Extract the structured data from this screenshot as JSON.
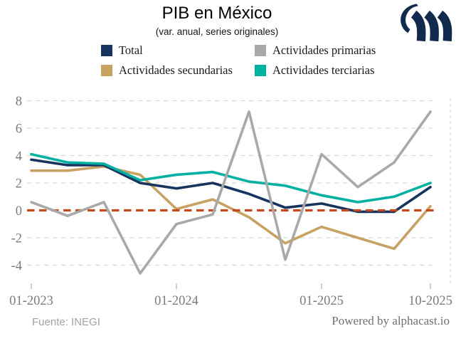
{
  "header": {
    "title": "PIB en México",
    "subtitle": "(var. anual, series originales)"
  },
  "chart_data": {
    "type": "line",
    "x": [
      "01-2023",
      "04-2023",
      "07-2023",
      "10-2023",
      "01-2024",
      "04-2024",
      "07-2024",
      "10-2024",
      "01-2025",
      "04-2025",
      "07-2025",
      "10-2025"
    ],
    "series": [
      {
        "name": "Total",
        "color": "#16345e",
        "values": [
          3.7,
          3.3,
          3.3,
          2.0,
          1.6,
          2.0,
          1.2,
          0.2,
          0.5,
          -0.1,
          -0.1,
          1.7
        ]
      },
      {
        "name": "Actividades primarias",
        "color": "#a9a9a9",
        "values": [
          0.6,
          -0.4,
          0.6,
          -4.6,
          -1.0,
          -0.3,
          7.2,
          -3.6,
          4.1,
          1.7,
          3.5,
          7.2
        ]
      },
      {
        "name": "Actividades secundarias",
        "color": "#c7a263",
        "values": [
          2.9,
          2.9,
          3.2,
          2.6,
          0.1,
          0.8,
          -0.5,
          -2.4,
          -1.2,
          -2.0,
          -2.8,
          0.3
        ]
      },
      {
        "name": "Actividades terciarias",
        "color": "#00b0a0",
        "values": [
          4.1,
          3.5,
          3.4,
          2.2,
          2.6,
          2.8,
          2.1,
          1.8,
          1.1,
          0.6,
          1.0,
          2.0
        ]
      }
    ],
    "yticks": [
      8,
      6,
      4,
      2,
      0,
      -2,
      -4
    ],
    "ylim": [
      -5.2,
      8.6
    ],
    "xtick_indices": [
      0,
      4,
      8,
      11
    ],
    "xtick_labels": [
      "01-2023",
      "01-2024",
      "01-2025",
      "10-2025"
    ],
    "zero_line_value": 0,
    "zero_line_color": "#c24a1e",
    "grid_color": "#d9d9d9",
    "axis_text_color": "#7a7a7a",
    "grid": true,
    "legend_position": "top"
  },
  "footer": {
    "source": "Fuente: INEGI",
    "powered_by": "Powered by alphacast.io"
  },
  "logo": {
    "label": "alphacast-logo",
    "color": "#112a4d"
  }
}
